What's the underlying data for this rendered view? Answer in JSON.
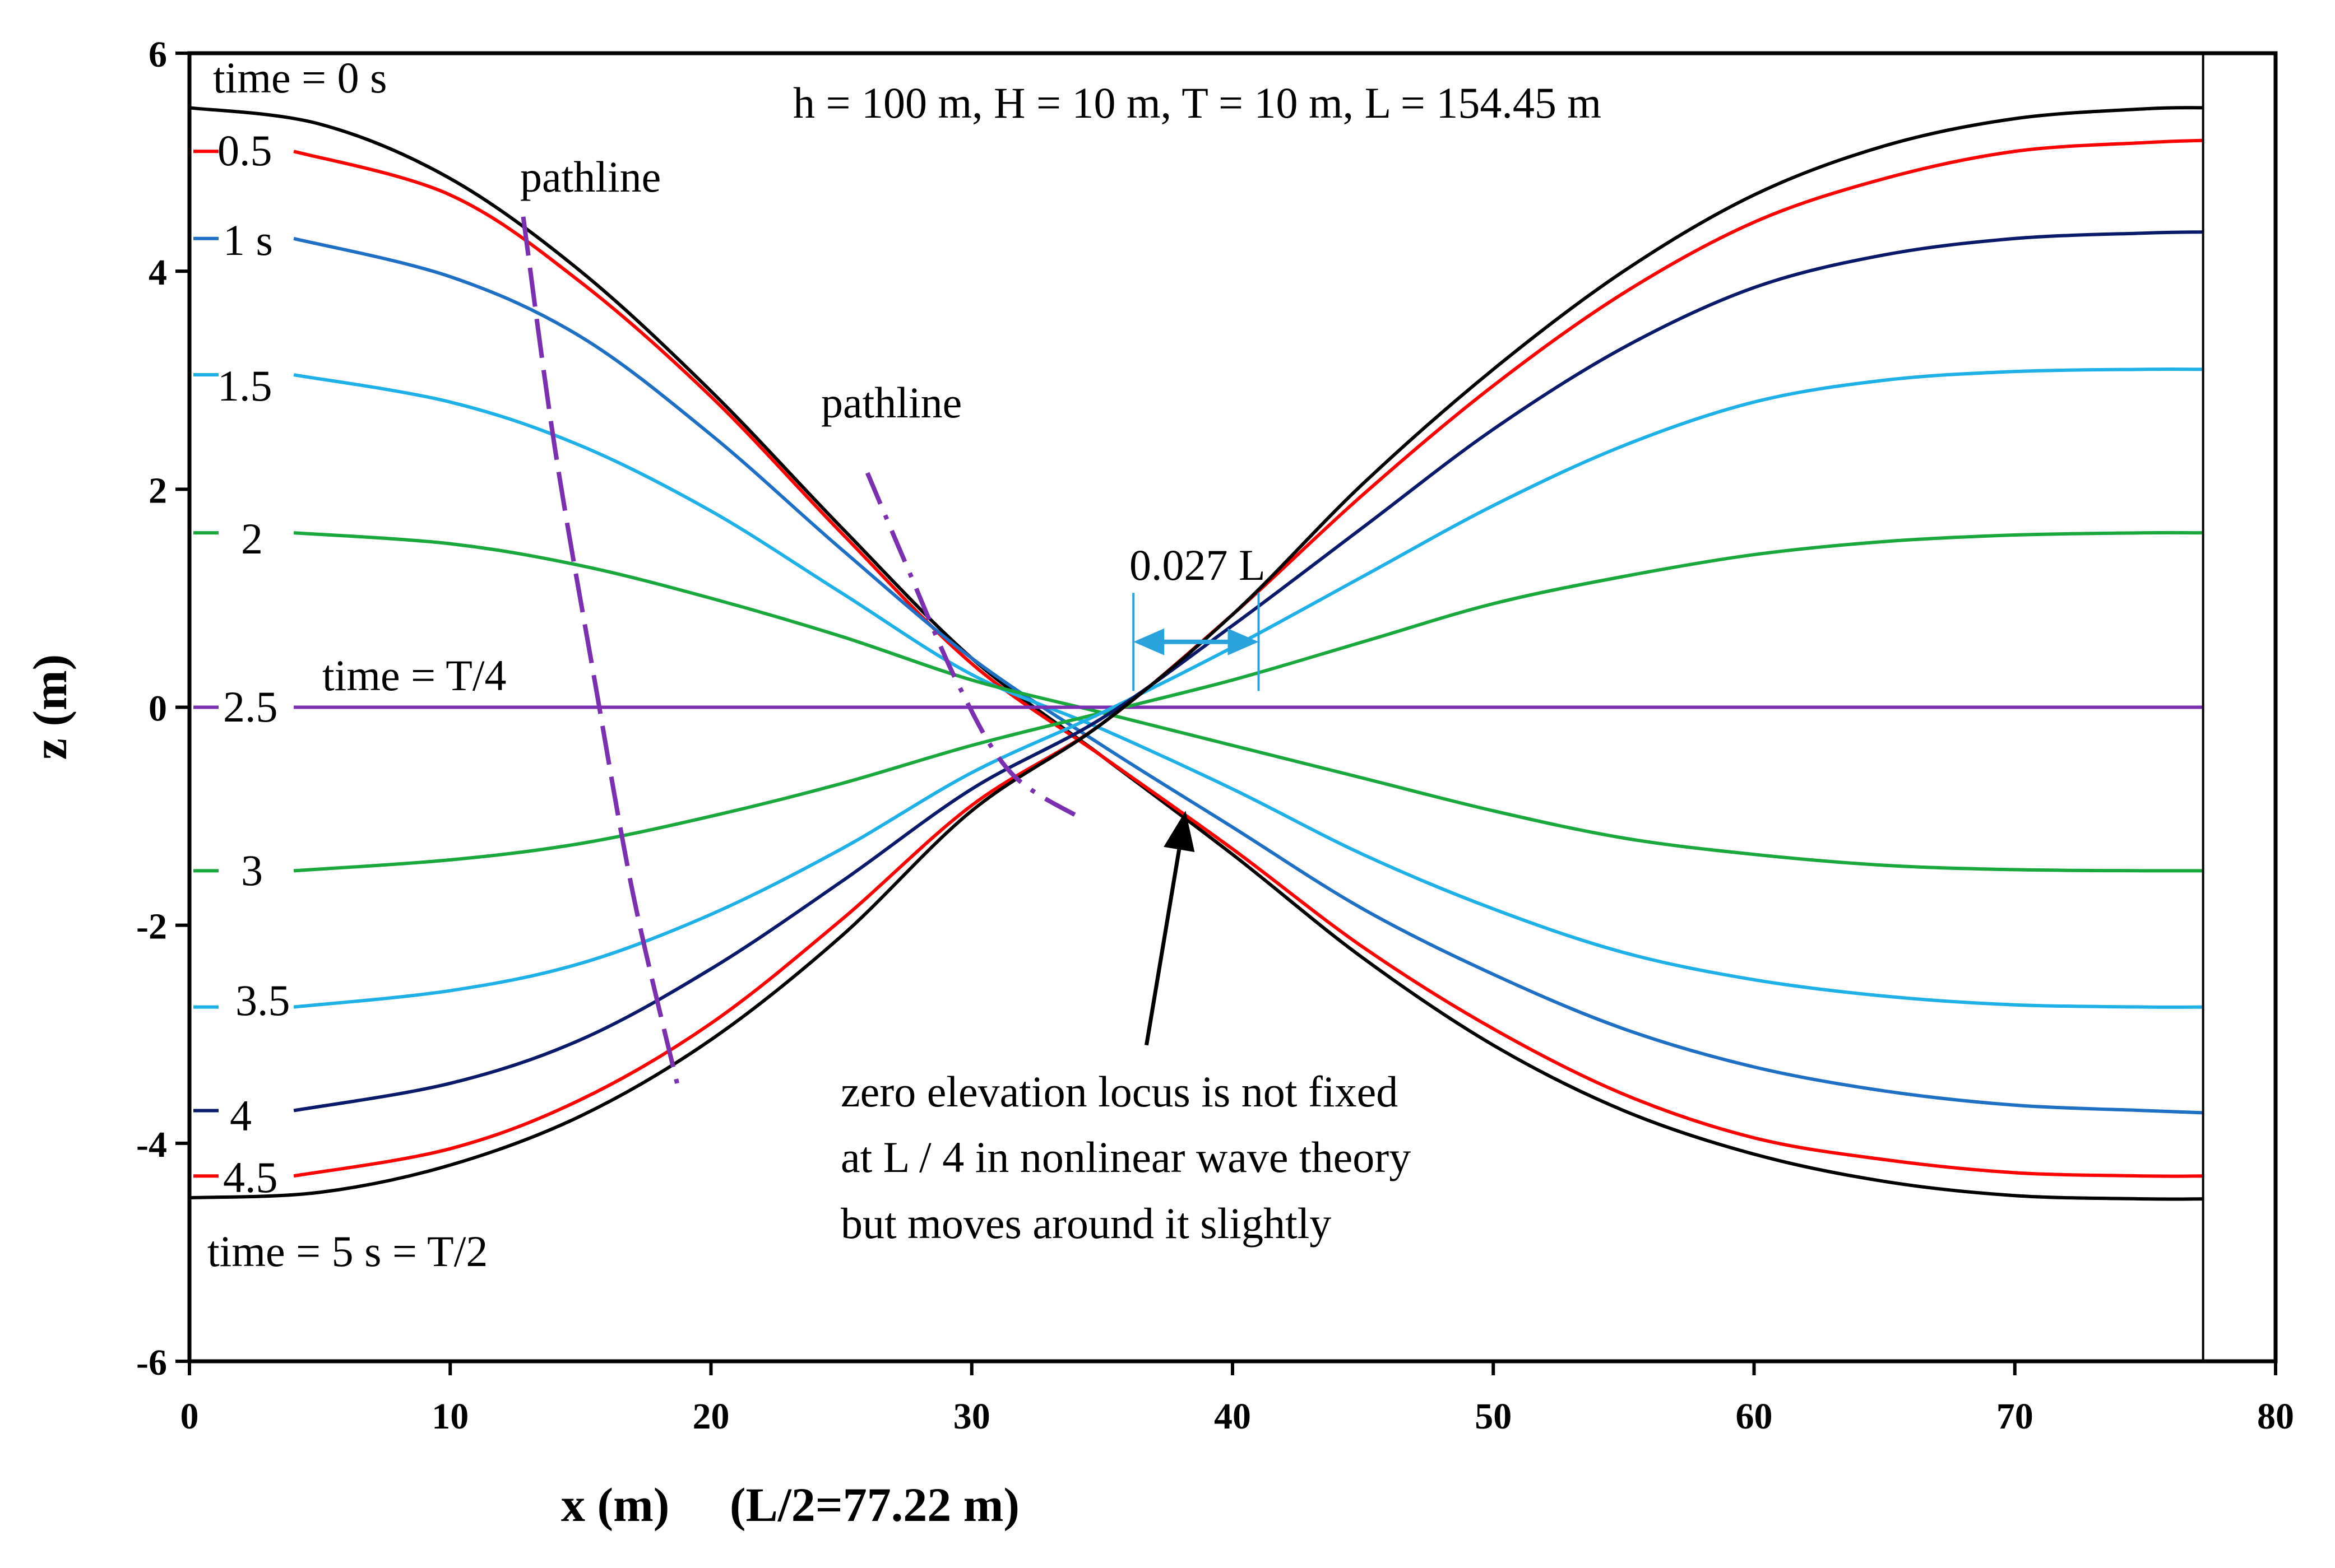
{
  "colors": {
    "black": "#000000",
    "red": "#ff0000",
    "navy": "#0a1a6a",
    "blue": "#1f6fc4",
    "lightblue": "#1fb0e8",
    "green": "#1aa83c",
    "purple": "#7a30b0",
    "arrow_blue": "#2aa3dc"
  },
  "chart_data": {
    "type": "line",
    "title": "",
    "xlabel": "x (m)     (L/2=77.22 m)",
    "ylabel": "z (m)",
    "xlim": [
      0,
      80
    ],
    "ylim": [
      -6,
      6
    ],
    "x_ticks": [
      "0",
      "10",
      "20",
      "30",
      "40",
      "50",
      "60",
      "70",
      "80"
    ],
    "y_ticks": [
      "6",
      "4",
      "2",
      "0",
      "-2",
      "-4",
      "-6"
    ],
    "grid": false,
    "legend": "none",
    "vertical_line_x": 77.22,
    "annotations": {
      "params": "h = 100 m, H = 10 m, T = 10 m, L = 154.45 m",
      "time_top": "time = 0 s",
      "time_quarter": "time = T/4",
      "time_bottom": "time = 5 s = T/2",
      "pathline_1": "pathline",
      "pathline_2": "pathline",
      "gap_label": "0.027 L",
      "locus_line1": "zero elevation locus is not fixed",
      "locus_line2": "at L / 4 in nonlinear wave theory",
      "locus_line3": "but moves around it slightly"
    },
    "series": [
      {
        "name": "time = 0 s",
        "color_key": "black",
        "x": [
          0,
          5,
          10,
          15,
          20,
          25,
          30,
          35,
          40,
          45,
          50,
          55,
          60,
          65,
          70,
          75,
          77.22
        ],
        "y": [
          5.5,
          5.35,
          4.85,
          4.0,
          2.9,
          1.65,
          0.45,
          -0.45,
          -1.35,
          -2.3,
          -3.1,
          -3.7,
          -4.1,
          -4.35,
          -4.48,
          -4.51,
          -4.51
        ]
      },
      {
        "name": "0.5",
        "label": "0.5",
        "color_key": "red",
        "x": [
          4,
          10,
          15,
          20,
          25,
          30,
          35,
          40,
          45,
          50,
          55,
          60,
          65,
          70,
          75,
          77.22
        ],
        "y": [
          5.1,
          4.7,
          3.9,
          2.85,
          1.6,
          0.4,
          -0.45,
          -1.3,
          -2.2,
          -2.95,
          -3.55,
          -3.95,
          -4.15,
          -4.27,
          -4.3,
          -4.3
        ]
      },
      {
        "name": "1 s",
        "label": "1 s",
        "color_key": "blue",
        "x": [
          4,
          10,
          15,
          20,
          25,
          30,
          35,
          40,
          45,
          50,
          55,
          60,
          65,
          70,
          75,
          77.22
        ],
        "y": [
          4.3,
          3.95,
          3.4,
          2.5,
          1.45,
          0.45,
          -0.35,
          -1.1,
          -1.85,
          -2.45,
          -2.95,
          -3.3,
          -3.52,
          -3.65,
          -3.7,
          -3.72
        ]
      },
      {
        "name": "1.5",
        "label": "1.5",
        "color_key": "lightblue",
        "x": [
          4,
          10,
          15,
          20,
          25,
          30,
          35,
          40,
          45,
          50,
          55,
          60,
          65,
          70,
          75,
          77.22
        ],
        "y": [
          3.05,
          2.8,
          2.4,
          1.8,
          1.05,
          0.3,
          -0.2,
          -0.75,
          -1.35,
          -1.85,
          -2.25,
          -2.5,
          -2.65,
          -2.73,
          -2.75,
          -2.75
        ]
      },
      {
        "name": "2",
        "label": "2",
        "color_key": "green",
        "x": [
          4,
          10,
          15,
          20,
          25,
          30,
          35,
          40,
          45,
          50,
          55,
          60,
          65,
          70,
          75,
          77.22
        ],
        "y": [
          1.6,
          1.5,
          1.3,
          1.0,
          0.65,
          0.25,
          -0.05,
          -0.35,
          -0.65,
          -0.95,
          -1.2,
          -1.35,
          -1.45,
          -1.49,
          -1.5,
          -1.5
        ]
      },
      {
        "name": "2.5",
        "label": "2.5",
        "color_key": "purple",
        "x": [
          4,
          20,
          40,
          60,
          77.22
        ],
        "y": [
          0.0,
          0.0,
          0.0,
          0.0,
          0.0
        ]
      },
      {
        "name": "3",
        "label": "3",
        "color_key": "green",
        "x": [
          4,
          10,
          15,
          20,
          25,
          30,
          35,
          40,
          45,
          50,
          55,
          60,
          65,
          70,
          75,
          77.22
        ],
        "y": [
          -1.5,
          -1.4,
          -1.25,
          -1.0,
          -0.7,
          -0.35,
          -0.05,
          0.25,
          0.6,
          0.95,
          1.2,
          1.4,
          1.52,
          1.58,
          1.6,
          1.6
        ]
      },
      {
        "name": "3.5",
        "label": "3.5",
        "color_key": "lightblue",
        "x": [
          4,
          10,
          15,
          20,
          25,
          30,
          35,
          40,
          45,
          50,
          55,
          60,
          65,
          70,
          75,
          77.22
        ],
        "y": [
          -2.75,
          -2.6,
          -2.35,
          -1.9,
          -1.3,
          -0.6,
          -0.05,
          0.55,
          1.2,
          1.85,
          2.4,
          2.8,
          3.0,
          3.08,
          3.1,
          3.1
        ]
      },
      {
        "name": "4",
        "label": "4",
        "color_key": "navy",
        "x": [
          4,
          10,
          15,
          20,
          25,
          30,
          35,
          40,
          45,
          50,
          55,
          60,
          65,
          70,
          75,
          77.22
        ],
        "y": [
          -3.7,
          -3.45,
          -3.05,
          -2.4,
          -1.6,
          -0.75,
          -0.1,
          0.75,
          1.65,
          2.55,
          3.3,
          3.85,
          4.15,
          4.3,
          4.35,
          4.36
        ]
      },
      {
        "name": "4.5",
        "label": "4.5",
        "color_key": "red",
        "x": [
          4,
          10,
          15,
          20,
          25,
          30,
          35,
          40,
          45,
          50,
          55,
          60,
          65,
          70,
          75,
          77.22
        ],
        "y": [
          -4.3,
          -4.05,
          -3.6,
          -2.9,
          -1.95,
          -0.9,
          -0.15,
          0.85,
          1.95,
          2.95,
          3.8,
          4.45,
          4.85,
          5.1,
          5.18,
          5.2
        ]
      },
      {
        "name": "time = 5 s = T/2",
        "color_key": "black",
        "x": [
          0,
          5,
          10,
          15,
          20,
          25,
          30,
          35,
          40,
          45,
          50,
          55,
          60,
          65,
          70,
          75,
          77.22
        ],
        "y": [
          -4.5,
          -4.45,
          -4.2,
          -3.75,
          -3.05,
          -2.1,
          -0.95,
          -0.15,
          0.85,
          2.05,
          3.1,
          4.0,
          4.7,
          5.15,
          5.4,
          5.49,
          5.5
        ]
      }
    ],
    "pathlines": [
      {
        "name": "pathline",
        "color_key": "purple",
        "style": "dash",
        "x": [
          12.8,
          14.0,
          15.5,
          17.0,
          18.7
        ],
        "y": [
          4.5,
          2.4,
          0.3,
          -1.7,
          -3.45
        ]
      },
      {
        "name": "pathline",
        "color_key": "purple",
        "style": "dashdot",
        "x": [
          26.0,
          27.5,
          29.5,
          31.5,
          34.2
        ],
        "y": [
          2.15,
          1.3,
          0.2,
          -0.6,
          -1.02
        ]
      }
    ],
    "gap_marker": {
      "x1": 36.2,
      "x2": 41.0,
      "y": 0.6,
      "y_top": 1.05,
      "y_bottom": 0.15
    },
    "locus_arrow": {
      "from": [
        36.7,
        -3.1
      ],
      "to": [
        38.2,
        -0.95
      ]
    }
  }
}
